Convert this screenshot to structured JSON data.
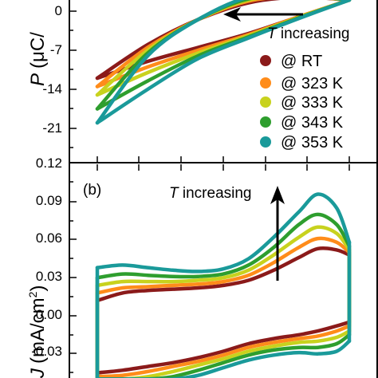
{
  "top_panel": {
    "ylabel": "P (μC/",
    "ylabel_sym": "P",
    "ylabel_unit": "(μC/",
    "annotation": "T increasing",
    "annotation_sym": "T",
    "annotation_rest": " increasing"
  },
  "bottom_panel": {
    "panel_label": "(b)",
    "ylabel_sym": "J",
    "ylabel_unit": "(mA/cm",
    "ylabel_sup": "2",
    "ylabel_close": ")",
    "annotation_sym": "T",
    "annotation_rest": " increasing"
  },
  "legend": [
    "@ RT",
    "@ 323 K",
    "@ 333 K",
    "@ 343 K",
    "@ 353 K"
  ],
  "colors": [
    "#8b1a1a",
    "#ff8c1a",
    "#c8d21e",
    "#2e9e2e",
    "#1a9a9a"
  ],
  "chart_data": [
    {
      "type": "line",
      "panel": "top",
      "ylabel": "P (μC/",
      "ylim": [
        -23,
        3
      ],
      "yticks": [
        "0",
        "-7",
        "-14",
        "-21"
      ],
      "x": [
        -10,
        -6,
        -2,
        2,
        6,
        10
      ],
      "series": [
        {
          "name": "@ RT",
          "lower": [
            -12.0,
            -9.0,
            -6.5,
            -4.0,
            -1.0,
            2.0
          ],
          "upper": [
            -12.0,
            -6.0,
            -1.5,
            1.5,
            2.5,
            2.0
          ]
        },
        {
          "name": "@ 323 K",
          "lower": [
            -13.5,
            -10.0,
            -7.0,
            -4.2,
            -1.0,
            2.0
          ],
          "upper": [
            -13.5,
            -6.5,
            -1.5,
            1.8,
            2.6,
            2.0
          ]
        },
        {
          "name": "@ 333 K",
          "lower": [
            -15.0,
            -11.0,
            -7.5,
            -4.4,
            -1.1,
            2.0
          ],
          "upper": [
            -15.0,
            -7.0,
            -1.5,
            2.0,
            2.7,
            2.0
          ]
        },
        {
          "name": "@ 343 K",
          "lower": [
            -17.5,
            -12.5,
            -8.0,
            -4.6,
            -1.2,
            2.0
          ],
          "upper": [
            -17.5,
            -7.5,
            -1.5,
            2.2,
            2.8,
            2.0
          ]
        },
        {
          "name": "@ 353 K",
          "lower": [
            -20.0,
            -14.0,
            -8.5,
            -4.8,
            -1.3,
            2.0
          ],
          "upper": [
            -20.0,
            -8.0,
            -1.5,
            2.5,
            3.0,
            2.0
          ]
        }
      ]
    },
    {
      "type": "line",
      "panel": "bottom",
      "ylabel": "J (mA/cm2)",
      "ylim": [
        -0.05,
        0.12
      ],
      "yticks": [
        "0.12",
        "0.09",
        "0.06",
        "0.03",
        "0.00",
        "-0.03"
      ],
      "x": [
        -10,
        -8,
        -6,
        -4,
        -2,
        0,
        2,
        4,
        6,
        7.5,
        9,
        10
      ],
      "series": [
        {
          "name": "@ RT",
          "upper": [
            0.012,
            0.018,
            0.02,
            0.021,
            0.022,
            0.024,
            0.028,
            0.036,
            0.046,
            0.053,
            0.052,
            0.048
          ],
          "lower": [
            -0.045,
            -0.043,
            -0.04,
            -0.037,
            -0.033,
            -0.028,
            -0.022,
            -0.018,
            -0.015,
            -0.012,
            -0.008,
            -0.005
          ]
        },
        {
          "name": "@ 323 K",
          "upper": [
            0.018,
            0.022,
            0.023,
            0.024,
            0.025,
            0.027,
            0.032,
            0.042,
            0.054,
            0.061,
            0.058,
            0.05
          ],
          "lower": [
            -0.048,
            -0.047,
            -0.044,
            -0.04,
            -0.036,
            -0.031,
            -0.025,
            -0.021,
            -0.018,
            -0.016,
            -0.012,
            -0.008
          ]
        },
        {
          "name": "@ 333 K",
          "upper": [
            0.024,
            0.027,
            0.027,
            0.027,
            0.028,
            0.03,
            0.036,
            0.048,
            0.062,
            0.07,
            0.065,
            0.052
          ],
          "lower": [
            -0.05,
            -0.05,
            -0.048,
            -0.044,
            -0.039,
            -0.034,
            -0.028,
            -0.024,
            -0.021,
            -0.02,
            -0.017,
            -0.012
          ]
        },
        {
          "name": "@ 343 K",
          "upper": [
            0.03,
            0.033,
            0.032,
            0.031,
            0.031,
            0.033,
            0.04,
            0.054,
            0.072,
            0.08,
            0.072,
            0.055
          ],
          "lower": [
            -0.05,
            -0.05,
            -0.05,
            -0.048,
            -0.043,
            -0.037,
            -0.031,
            -0.027,
            -0.025,
            -0.025,
            -0.022,
            -0.015
          ]
        },
        {
          "name": "@ 353 K",
          "upper": [
            0.038,
            0.04,
            0.038,
            0.036,
            0.035,
            0.037,
            0.045,
            0.062,
            0.082,
            0.096,
            0.085,
            0.058
          ],
          "lower": [
            -0.05,
            -0.05,
            -0.05,
            -0.05,
            -0.047,
            -0.041,
            -0.035,
            -0.031,
            -0.029,
            -0.03,
            -0.028,
            -0.02
          ]
        }
      ]
    }
  ]
}
